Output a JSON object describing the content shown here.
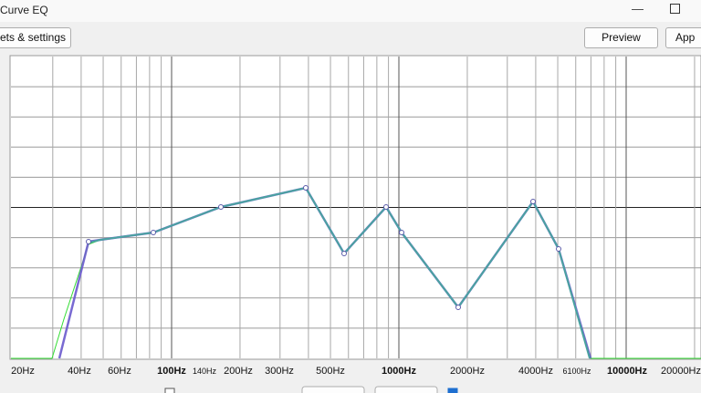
{
  "window": {
    "title": "Curve EQ"
  },
  "toolbar": {
    "presets_button": "ets & settings",
    "preview_button": "Preview",
    "apply_button": "App"
  },
  "graph": {
    "x_labels": [
      "20Hz",
      "40Hz",
      "60Hz",
      "100Hz",
      "140Hz",
      "200Hz",
      "300Hz",
      "500Hz",
      "1000Hz",
      "2000Hz",
      "4000Hz",
      "6100Hz",
      "10000Hz",
      "20000Hz"
    ]
  }
}
